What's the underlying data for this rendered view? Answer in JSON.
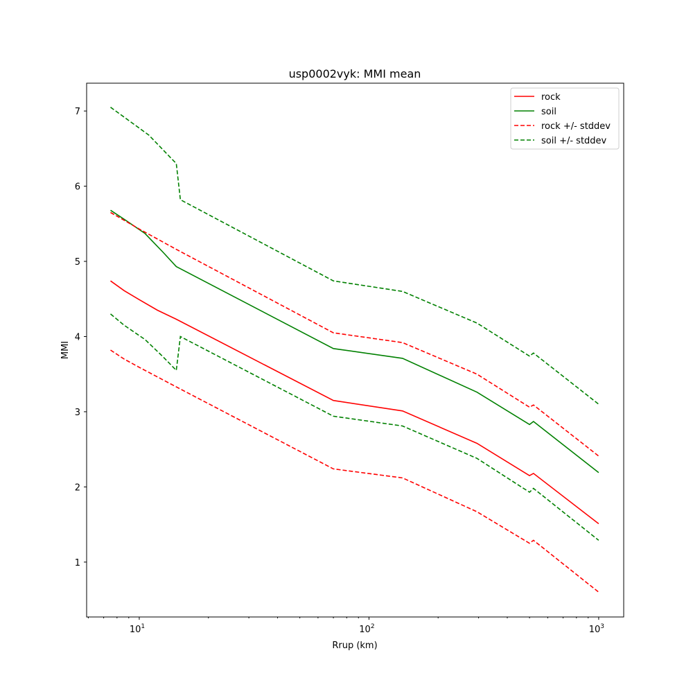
{
  "chart_data": {
    "type": "line",
    "title": "usp0002vyk: MMI mean",
    "xlabel": "Rrup (km)",
    "ylabel": "MMI",
    "xscale": "log",
    "xlim": [
      5.9,
      1285
    ],
    "ylim": [
      0.27,
      7.37
    ],
    "xticks": [
      {
        "value": 10,
        "base": "10",
        "exp": "1"
      },
      {
        "value": 100,
        "base": "10",
        "exp": "2"
      },
      {
        "value": 1000,
        "base": "10",
        "exp": "3"
      }
    ],
    "yticks": [
      "1",
      "2",
      "3",
      "4",
      "5",
      "6",
      "7"
    ],
    "legend_position": "top-right",
    "series": [
      {
        "name": "rock",
        "color": "#ff0000",
        "dash": false,
        "x": [
          7.5,
          8.6,
          10,
          12,
          14.5,
          70,
          140,
          295,
          500,
          520,
          1000
        ],
        "y": [
          4.74,
          4.61,
          4.49,
          4.35,
          4.23,
          3.15,
          3.01,
          2.58,
          2.15,
          2.18,
          1.51
        ]
      },
      {
        "name": "soil",
        "color": "#008000",
        "dash": false,
        "x": [
          7.5,
          8.6,
          10.6,
          12.7,
          14.5,
          70,
          140,
          295,
          500,
          520,
          1000
        ],
        "y": [
          5.68,
          5.56,
          5.37,
          5.12,
          4.93,
          3.84,
          3.71,
          3.26,
          2.83,
          2.87,
          2.19
        ]
      },
      {
        "name": "rock +/- stddev",
        "color": "#ff0000",
        "dash": true,
        "x": [
          7.5,
          10,
          14.5,
          70,
          140,
          295,
          500,
          520,
          1000
        ],
        "y": [
          5.65,
          5.43,
          5.16,
          4.05,
          3.92,
          3.5,
          3.06,
          3.09,
          2.41
        ]
      },
      {
        "name": "rock - stddev",
        "color": "#ff0000",
        "dash": true,
        "legend": false,
        "x": [
          7.5,
          8.6,
          10,
          14.5,
          70,
          140,
          295,
          500,
          520,
          1000
        ],
        "y": [
          3.82,
          3.7,
          3.59,
          3.33,
          2.24,
          2.12,
          1.67,
          1.25,
          1.29,
          0.6
        ]
      },
      {
        "name": "soil +/- stddev",
        "color": "#008000",
        "dash": true,
        "x": [
          7.5,
          11.0,
          14.5,
          15.1,
          70,
          140,
          295,
          500,
          520,
          1000
        ],
        "y": [
          7.05,
          6.68,
          6.3,
          5.82,
          4.74,
          4.6,
          4.18,
          3.74,
          3.78,
          3.1
        ]
      },
      {
        "name": "soil - stddev",
        "color": "#008000",
        "dash": true,
        "legend": false,
        "x": [
          7.5,
          8.6,
          10.6,
          12.7,
          14.5,
          15.1,
          70,
          140,
          295,
          500,
          520,
          1000
        ],
        "y": [
          4.3,
          4.15,
          3.96,
          3.73,
          3.55,
          4.0,
          2.94,
          2.81,
          2.38,
          1.93,
          1.98,
          1.29
        ]
      }
    ]
  }
}
